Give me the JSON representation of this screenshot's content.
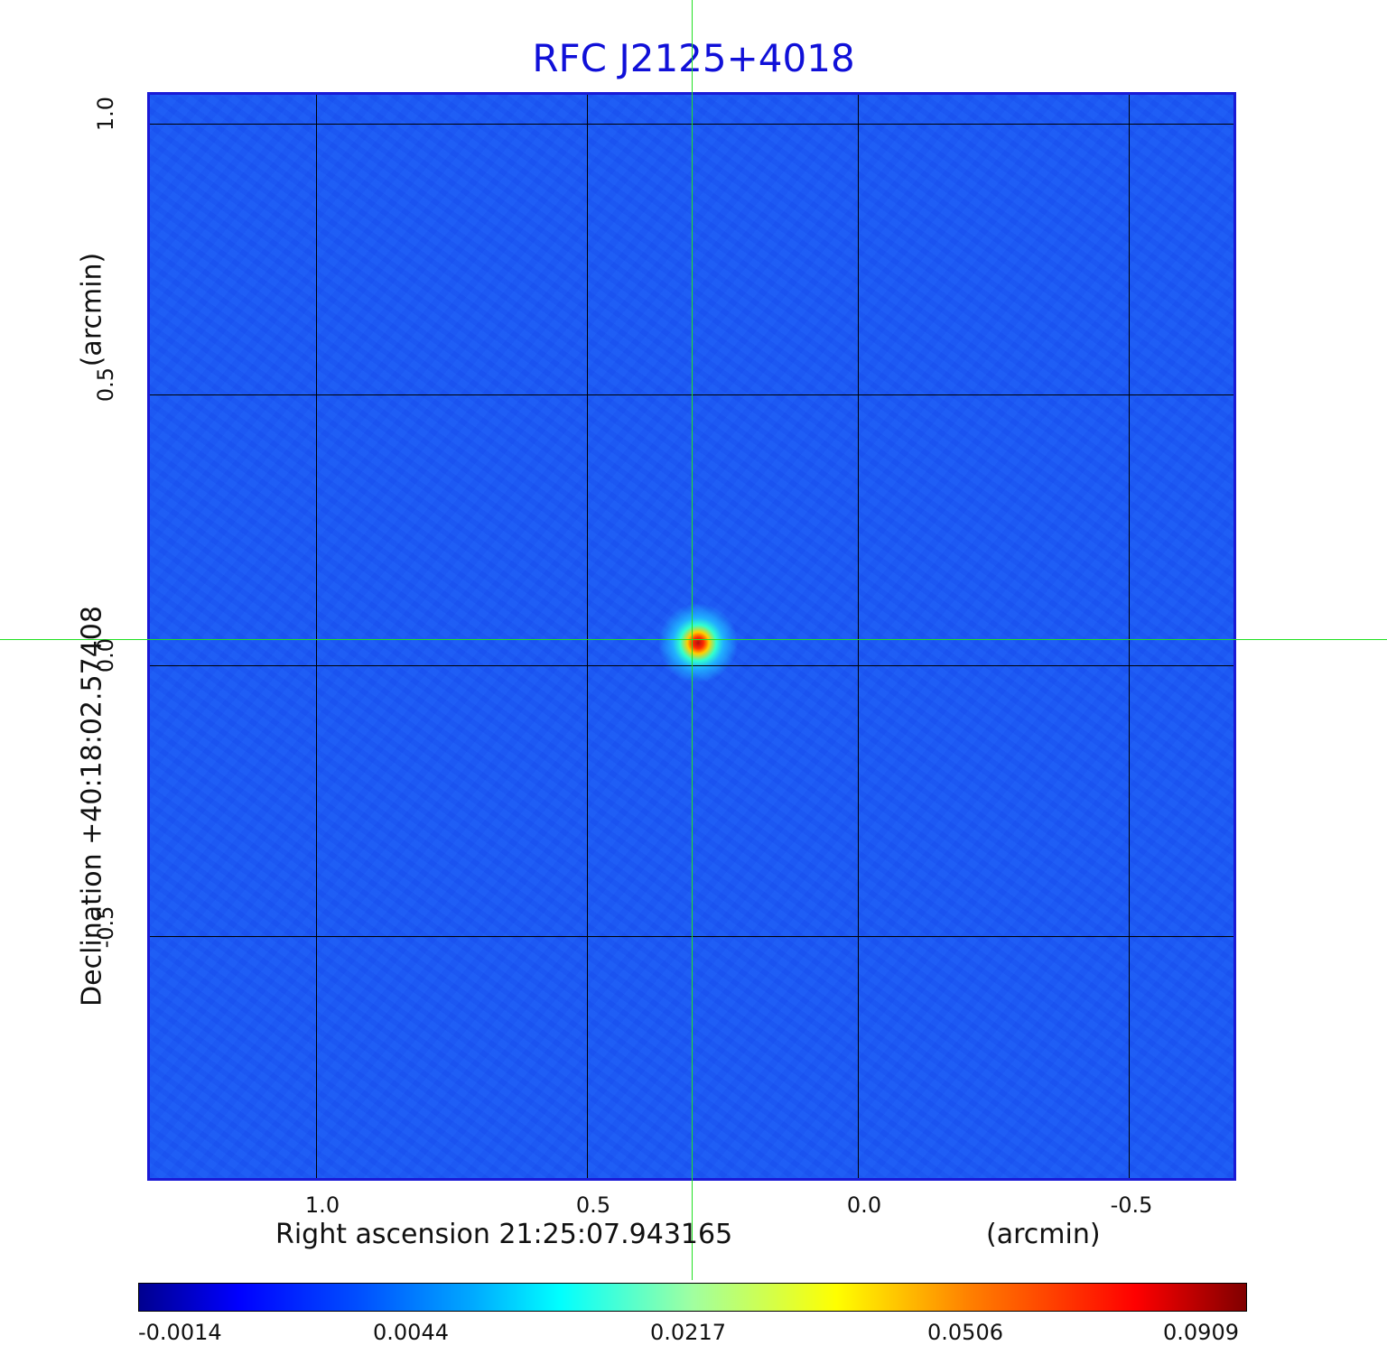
{
  "chart_data": {
    "type": "heatmap",
    "title": "RFC J2125+4018",
    "xlabel": "Right ascension  21:25:07.943165",
    "x_unit": "(arcmin)",
    "ylabel": "Declination  +40:18:02.57408",
    "y_unit": "(arcmin)",
    "x_ticks": [
      {
        "value": 1.0,
        "label": "1.0"
      },
      {
        "value": 0.5,
        "label": "0.5"
      },
      {
        "value": 0.0,
        "label": "0.0"
      },
      {
        "value": -0.5,
        "label": "-0.5"
      }
    ],
    "y_ticks": [
      {
        "value": 1.0,
        "label": "1.0"
      },
      {
        "value": 0.5,
        "label": "0.5"
      },
      {
        "value": 0.0,
        "label": "0.0"
      },
      {
        "value": -0.5,
        "label": "-0.5"
      }
    ],
    "xlim": [
      1.31,
      -0.7
    ],
    "ylim": [
      -0.96,
      1.06
    ],
    "grid": true,
    "source_peak": {
      "ra_offset": 0.305,
      "dec_offset": 0.045
    },
    "colorbar": {
      "placement": "bottom",
      "ticks": [
        "-0.0014",
        "0.0044",
        "0.0217",
        "0.0506",
        "0.0909"
      ],
      "colormap": "jet",
      "min": -0.0014,
      "max": 0.0909
    }
  },
  "colors": {
    "title": "#1010d8",
    "frame": "#1a1ad6",
    "background": "#1e5cf4",
    "crosshair": "#22e022",
    "grid": "#000000"
  }
}
